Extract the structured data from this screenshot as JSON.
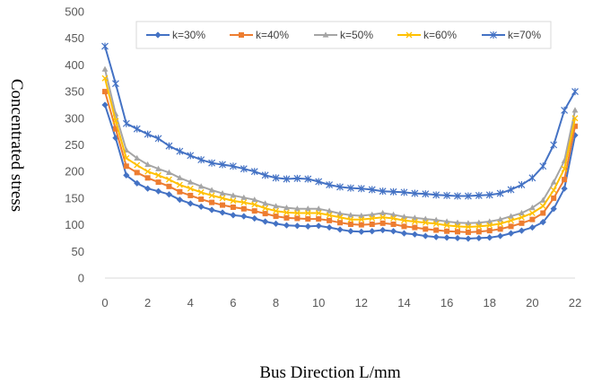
{
  "chart_data": {
    "type": "line",
    "title": "",
    "xlabel": "Bus Direction L/mm",
    "ylabel": "Concentrated stress",
    "xlim": [
      0,
      22
    ],
    "ylim": [
      0,
      500
    ],
    "xticks": [
      0,
      2,
      4,
      6,
      8,
      10,
      12,
      14,
      16,
      18,
      20,
      22
    ],
    "yticks": [
      0,
      50,
      100,
      150,
      200,
      250,
      300,
      350,
      400,
      450,
      500
    ],
    "grid": false,
    "legend_position": "top",
    "x": [
      0,
      0.5,
      1,
      1.5,
      2,
      2.5,
      3,
      3.5,
      4,
      4.5,
      5,
      5.5,
      6,
      6.5,
      7,
      7.5,
      8,
      8.5,
      9,
      9.5,
      10,
      10.5,
      11,
      11.5,
      12,
      12.5,
      13,
      13.5,
      14,
      14.5,
      15,
      15.5,
      16,
      16.5,
      17,
      17.5,
      18,
      18.5,
      19,
      19.5,
      20,
      20.5,
      21,
      21.5,
      22
    ],
    "series": [
      {
        "name": "k=30%",
        "color": "#4472C4",
        "marker": "diamond",
        "values": [
          325,
          263,
          193,
          178,
          168,
          163,
          157,
          147,
          140,
          134,
          128,
          123,
          118,
          116,
          112,
          106,
          102,
          99,
          98,
          97,
          98,
          95,
          91,
          88,
          87,
          88,
          90,
          88,
          84,
          82,
          79,
          77,
          76,
          75,
          74,
          75,
          76,
          79,
          84,
          89,
          95,
          105,
          130,
          168,
          268
        ]
      },
      {
        "name": "k=40%",
        "color": "#ED7D31",
        "marker": "square",
        "values": [
          350,
          280,
          210,
          198,
          188,
          180,
          172,
          162,
          155,
          148,
          142,
          137,
          133,
          130,
          126,
          121,
          116,
          113,
          112,
          111,
          111,
          108,
          104,
          101,
          100,
          101,
          103,
          101,
          97,
          95,
          92,
          90,
          88,
          87,
          86,
          87,
          89,
          92,
          97,
          103,
          110,
          122,
          150,
          185,
          285
        ]
      },
      {
        "name": "k=50%",
        "color": "#A5A5A5",
        "marker": "triangle",
        "values": [
          392,
          308,
          240,
          225,
          213,
          205,
          198,
          188,
          180,
          172,
          165,
          159,
          155,
          151,
          147,
          140,
          135,
          132,
          130,
          130,
          130,
          126,
          121,
          118,
          117,
          119,
          122,
          119,
          115,
          113,
          111,
          109,
          106,
          104,
          103,
          104,
          106,
          110,
          116,
          122,
          132,
          146,
          180,
          220,
          315
        ]
      },
      {
        "name": "k=60%",
        "color": "#FFC000",
        "marker": "x",
        "values": [
          375,
          295,
          225,
          212,
          200,
          193,
          185,
          175,
          168,
          161,
          155,
          150,
          145,
          142,
          138,
          131,
          126,
          123,
          122,
          122,
          122,
          118,
          114,
          110,
          110,
          112,
          114,
          112,
          108,
          106,
          104,
          102,
          99,
          97,
          96,
          97,
          99,
          102,
          108,
          114,
          122,
          135,
          165,
          205,
          300
        ]
      },
      {
        "name": "k=70%",
        "color": "#4472C4",
        "marker": "star",
        "values": [
          435,
          365,
          290,
          280,
          270,
          262,
          248,
          238,
          230,
          222,
          216,
          213,
          210,
          205,
          200,
          193,
          188,
          186,
          187,
          186,
          181,
          175,
          171,
          169,
          168,
          166,
          163,
          162,
          161,
          159,
          158,
          156,
          155,
          154,
          154,
          155,
          156,
          159,
          166,
          175,
          188,
          210,
          250,
          315,
          350
        ]
      }
    ]
  }
}
